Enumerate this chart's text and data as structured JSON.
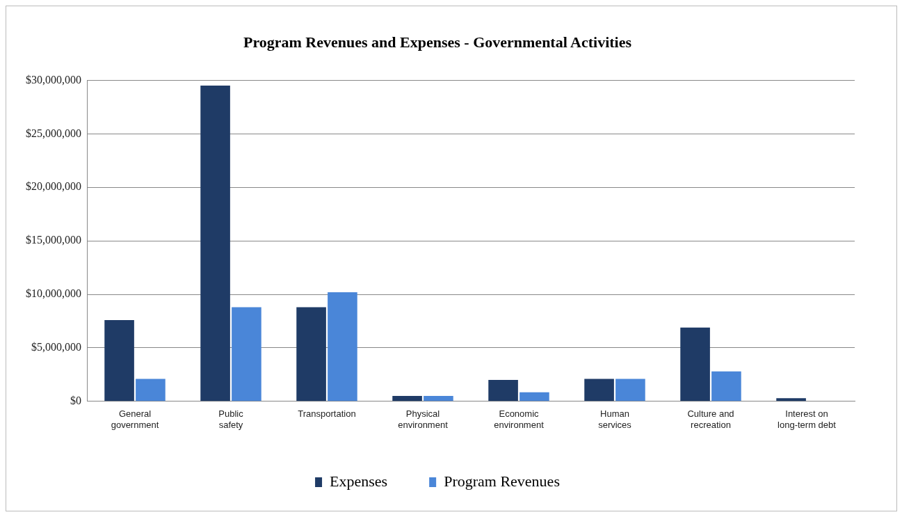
{
  "chart_data": {
    "type": "bar",
    "title": "Program Revenues and Expenses - Governmental Activities",
    "categories": [
      "General government",
      "Public safety",
      "Transportation",
      "Physical environment",
      "Economic environment",
      "Human services",
      "Culture and recreation",
      "Interest on long-term debt"
    ],
    "series": [
      {
        "name": "Expenses",
        "color": "#1f3b66",
        "values": [
          7600000,
          29500000,
          8800000,
          500000,
          2000000,
          2100000,
          6900000,
          300000
        ]
      },
      {
        "name": "Program Revenues",
        "color": "#4a86d8",
        "values": [
          2100000,
          8800000,
          10200000,
          500000,
          850000,
          2100000,
          2800000,
          0
        ]
      }
    ],
    "ylim": [
      0,
      30000000
    ],
    "yticks": [
      {
        "value": 0,
        "label": "$0"
      },
      {
        "value": 5000000,
        "label": "$5,000,000"
      },
      {
        "value": 10000000,
        "label": "$10,000,000"
      },
      {
        "value": 15000000,
        "label": "$15,000,000"
      },
      {
        "value": 20000000,
        "label": "$20,000,000"
      },
      {
        "value": 25000000,
        "label": "$25,000,000"
      },
      {
        "value": 30000000,
        "label": "$30,000,000"
      }
    ],
    "grid": "y",
    "legend": "bottom"
  }
}
